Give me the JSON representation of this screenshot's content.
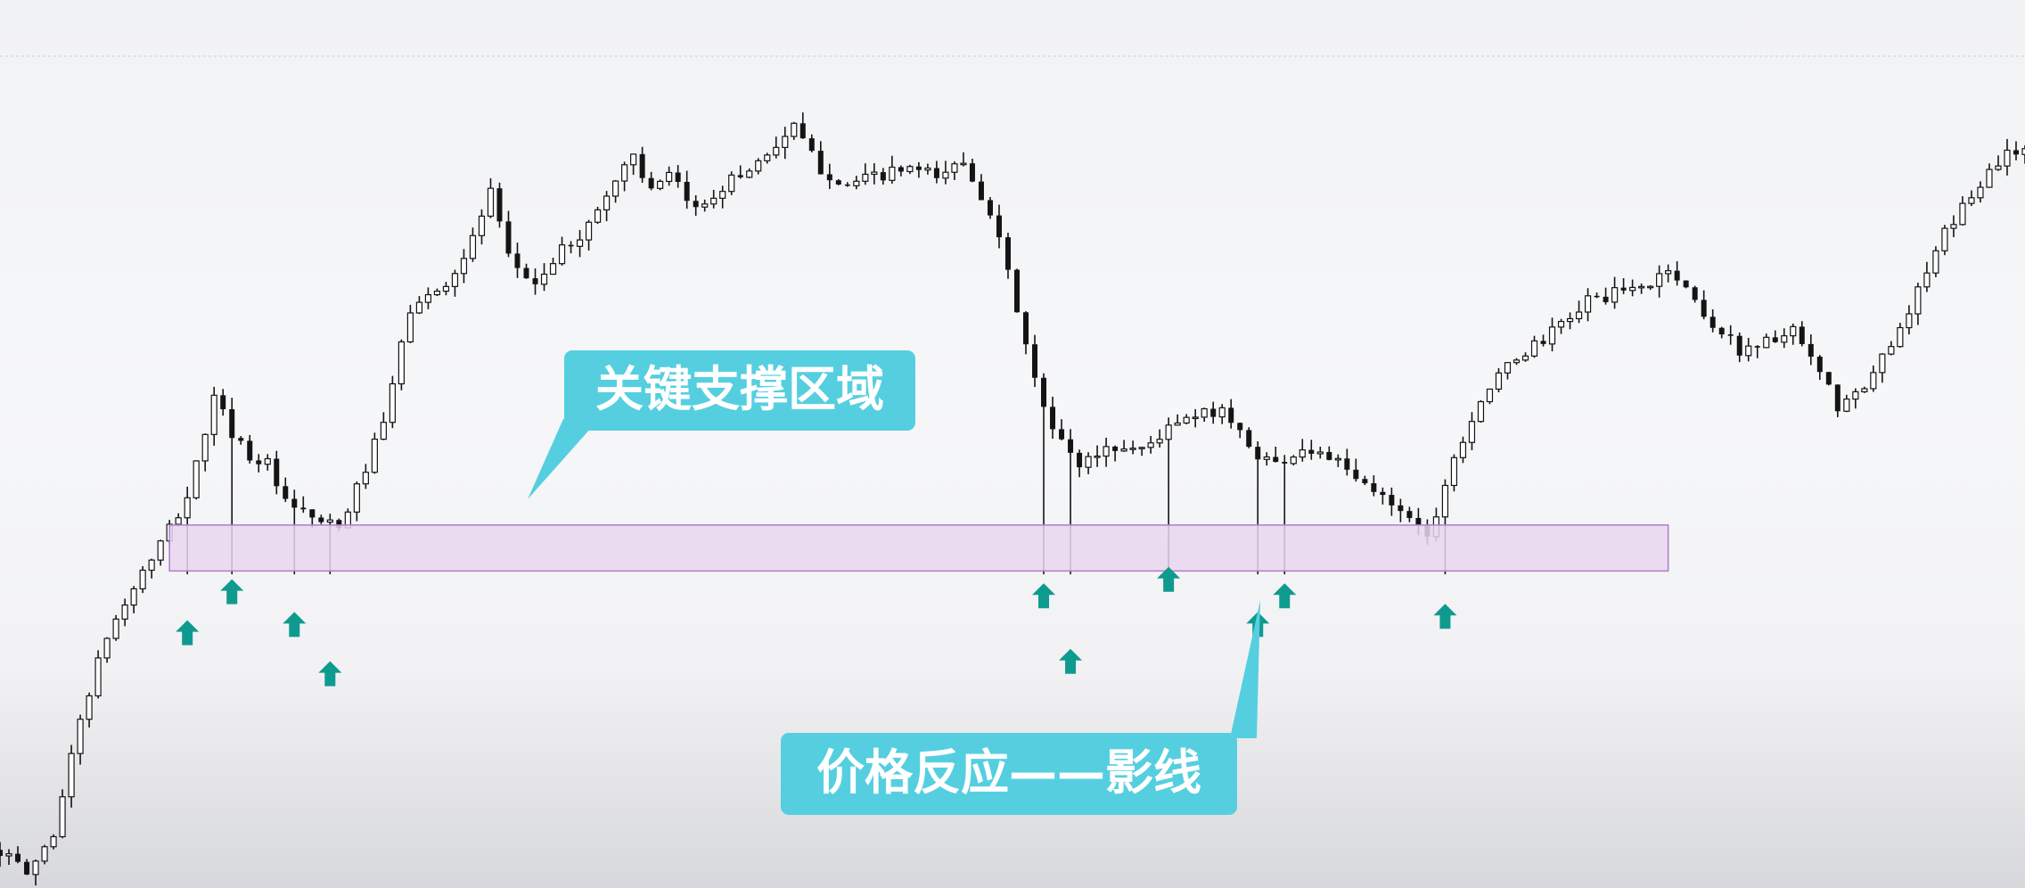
{
  "colors": {
    "candle": "#141414",
    "zone_fill": "#e7d6ef",
    "zone_stroke": "#b07ccb",
    "arrow": "#0f9a8f",
    "callout_bg": "#55cfe0",
    "top_guide": "#d9dbe0"
  },
  "callouts": {
    "support_zone_label": "关键支撑区域",
    "wick_reaction_label": "价格反应——影线"
  },
  "chart_data": {
    "type": "candlestick",
    "title": "",
    "xlabel": "",
    "ylabel": "",
    "grid": false,
    "legend": "none",
    "ylim": [
      0,
      100
    ],
    "support_zone": {
      "low": 38.0,
      "high": 43.6,
      "x_start": 19,
      "x_end": 187
    },
    "close_path": [
      [
        0,
        4
      ],
      [
        3,
        1
      ],
      [
        6,
        6
      ],
      [
        9,
        20
      ],
      [
        12,
        30
      ],
      [
        15,
        36
      ],
      [
        19,
        43
      ],
      [
        21,
        47
      ],
      [
        24,
        59
      ],
      [
        26,
        55
      ],
      [
        28,
        52
      ],
      [
        30,
        51
      ],
      [
        32,
        46
      ],
      [
        34,
        45
      ],
      [
        36,
        44
      ],
      [
        38,
        43
      ],
      [
        40,
        48
      ],
      [
        43,
        56
      ],
      [
        46,
        70
      ],
      [
        49,
        72
      ],
      [
        52,
        76
      ],
      [
        55,
        84
      ],
      [
        57,
        76
      ],
      [
        60,
        73
      ],
      [
        63,
        77
      ],
      [
        66,
        80
      ],
      [
        68,
        84
      ],
      [
        71,
        89
      ],
      [
        73,
        84
      ],
      [
        75,
        86
      ],
      [
        78,
        82
      ],
      [
        81,
        85
      ],
      [
        84,
        87
      ],
      [
        87,
        90
      ],
      [
        89,
        92
      ],
      [
        92,
        87
      ],
      [
        95,
        85
      ],
      [
        98,
        86
      ],
      [
        102,
        87
      ],
      [
        105,
        86
      ],
      [
        108,
        88
      ],
      [
        111,
        82
      ],
      [
        114,
        70
      ],
      [
        116,
        61
      ],
      [
        118,
        55
      ],
      [
        121,
        51
      ],
      [
        124,
        53
      ],
      [
        128,
        53
      ],
      [
        132,
        56
      ],
      [
        135,
        57
      ],
      [
        137,
        58
      ],
      [
        140,
        53
      ],
      [
        143,
        51
      ],
      [
        146,
        53
      ],
      [
        149,
        52
      ],
      [
        152,
        49
      ],
      [
        155,
        47
      ],
      [
        158,
        45
      ],
      [
        160,
        42
      ],
      [
        163,
        52
      ],
      [
        166,
        59
      ],
      [
        170,
        64
      ],
      [
        174,
        67
      ],
      [
        178,
        71
      ],
      [
        182,
        72
      ],
      [
        185,
        73
      ],
      [
        187,
        75
      ],
      [
        190,
        71
      ],
      [
        192,
        68
      ],
      [
        195,
        65
      ],
      [
        198,
        66
      ],
      [
        201,
        67
      ],
      [
        204,
        62
      ],
      [
        206,
        58
      ],
      [
        209,
        60
      ],
      [
        212,
        66
      ],
      [
        215,
        72
      ],
      [
        218,
        79
      ],
      [
        221,
        84
      ],
      [
        224,
        88
      ],
      [
        227,
        90
      ]
    ],
    "wick_arrows": [
      {
        "x": 21,
        "level": 32
      },
      {
        "x": 26,
        "level": 37
      },
      {
        "x": 33,
        "level": 33
      },
      {
        "x": 37,
        "level": 27
      },
      {
        "x": 117,
        "level": 36.5
      },
      {
        "x": 120,
        "level": 28.5
      },
      {
        "x": 131,
        "level": 38.5
      },
      {
        "x": 141,
        "level": 33
      },
      {
        "x": 144,
        "level": 36.5
      },
      {
        "x": 162,
        "level": 34
      }
    ]
  }
}
